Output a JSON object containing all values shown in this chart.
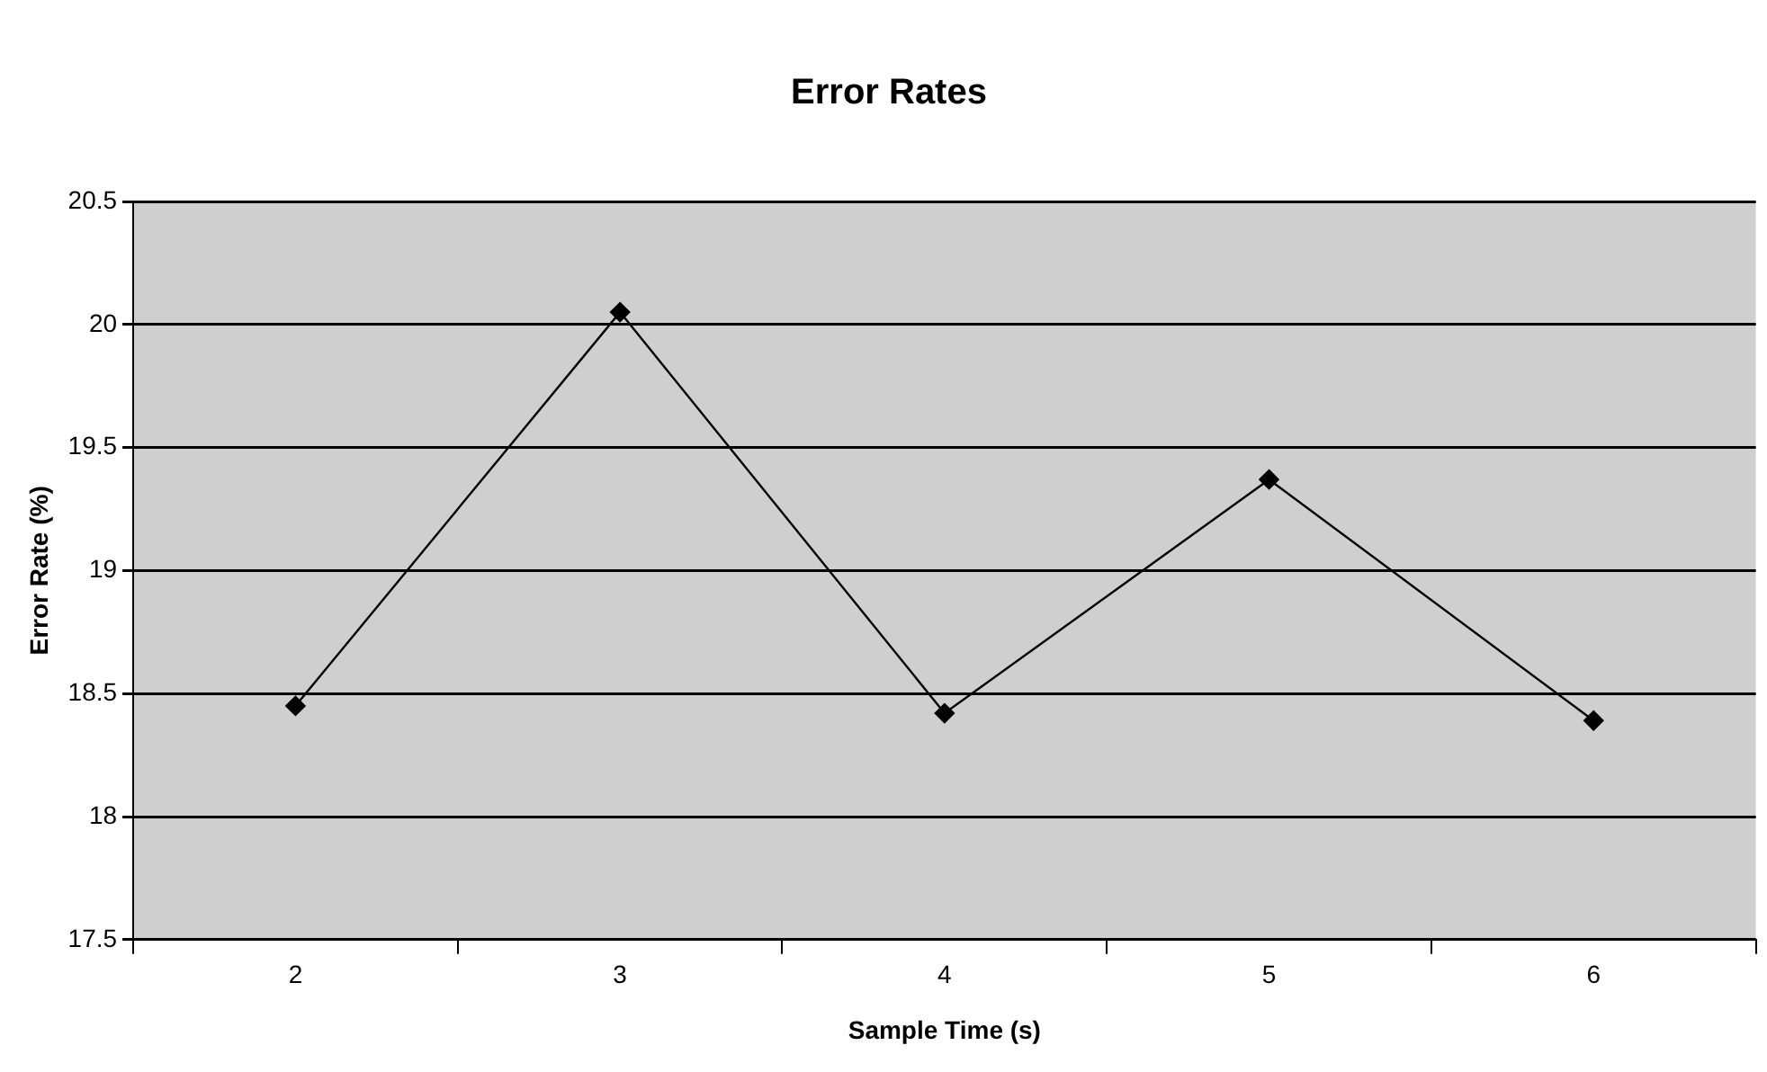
{
  "chart_data": {
    "type": "line",
    "title": "Error Rates",
    "xlabel": "Sample Time (s)",
    "ylabel": "Error Rate (%)",
    "categories": [
      "2",
      "3",
      "4",
      "5",
      "6"
    ],
    "series": [
      {
        "color": "#000000",
        "values": [
          18.45,
          20.05,
          18.42,
          19.37,
          18.39
        ]
      }
    ],
    "ylim": [
      17.5,
      20.5
    ],
    "yticks": [
      17.5,
      18,
      18.5,
      19,
      19.5,
      20,
      20.5
    ],
    "grid": "y",
    "legend": false,
    "marker": "diamond",
    "line_style": "solid"
  }
}
